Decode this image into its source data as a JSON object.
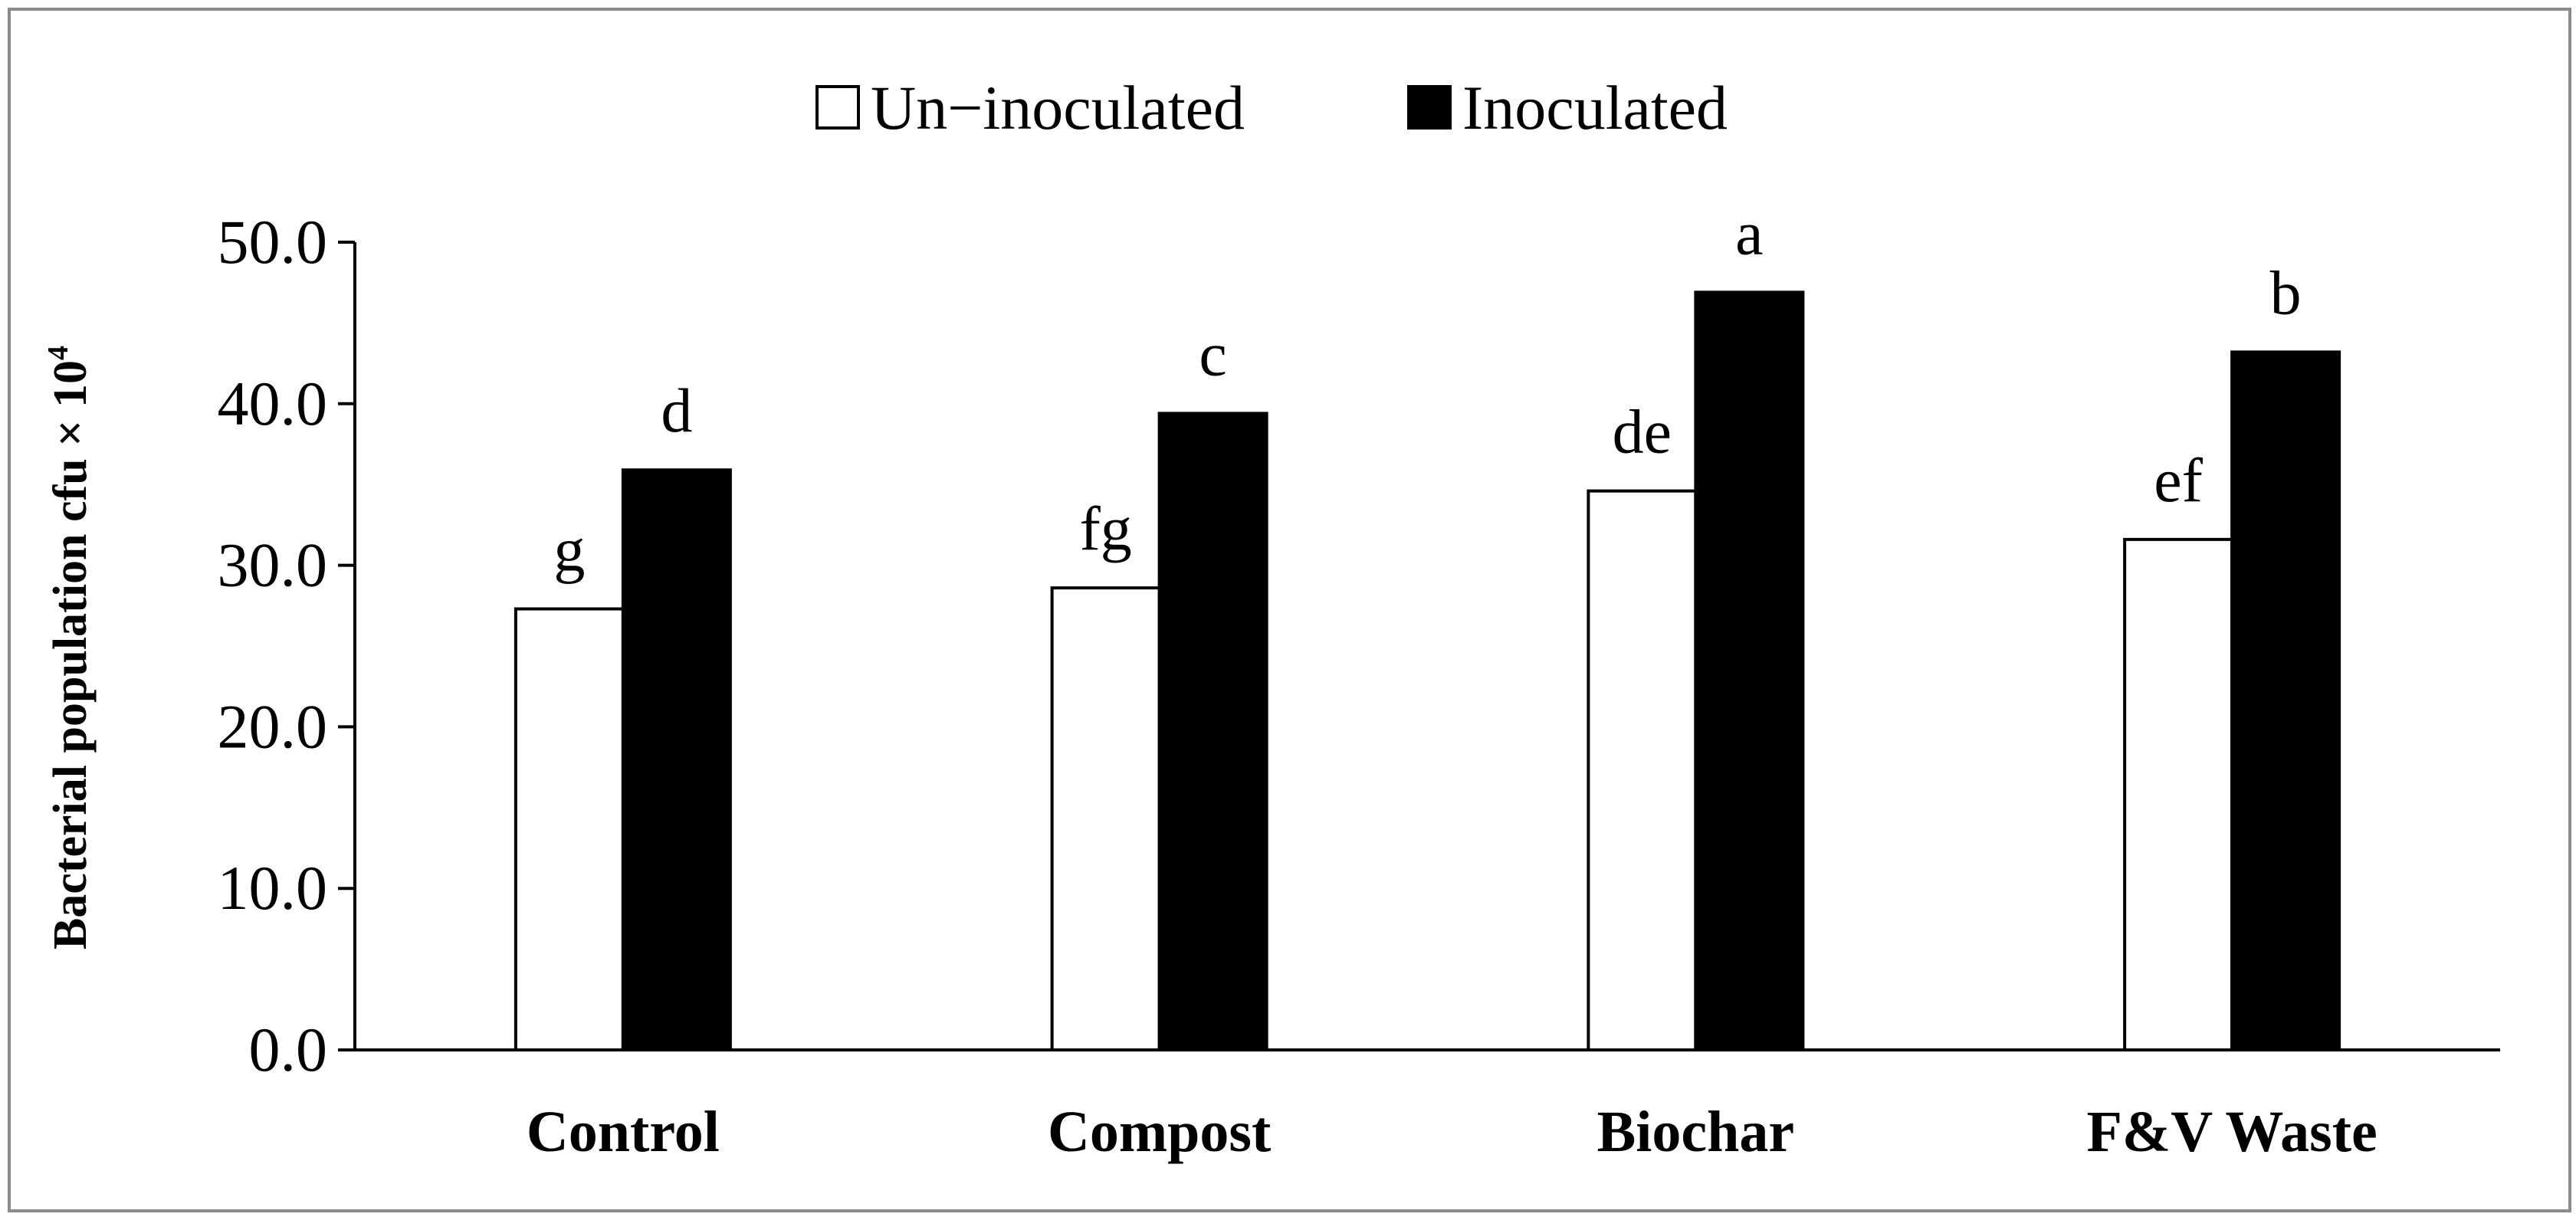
{
  "chart_data": {
    "type": "bar",
    "title": "",
    "xlabel": "",
    "ylabel": "Bacterial population cfu × 10",
    "ylabel_superscript": "4",
    "categories": [
      "Control",
      "Compost",
      "Biochar",
      "F&V Waste"
    ],
    "series": [
      {
        "name": "Un−inoculated",
        "values": [
          27.3,
          28.6,
          34.6,
          31.6
        ],
        "letters": [
          "g",
          "fg",
          "de",
          "ef"
        ],
        "fill": "#ffffff"
      },
      {
        "name": "Inoculated",
        "values": [
          35.9,
          39.4,
          46.9,
          43.2
        ],
        "letters": [
          "d",
          "c",
          "a",
          "b"
        ],
        "fill": "#000000"
      }
    ],
    "ylim": [
      0,
      50
    ],
    "yticks": [
      0,
      10,
      20,
      30,
      40,
      50
    ],
    "ytick_labels": [
      "0.0",
      "10.0",
      "20.0",
      "30.0",
      "40.0",
      "50.0"
    ],
    "grid": false,
    "legend_position": "top-center"
  }
}
